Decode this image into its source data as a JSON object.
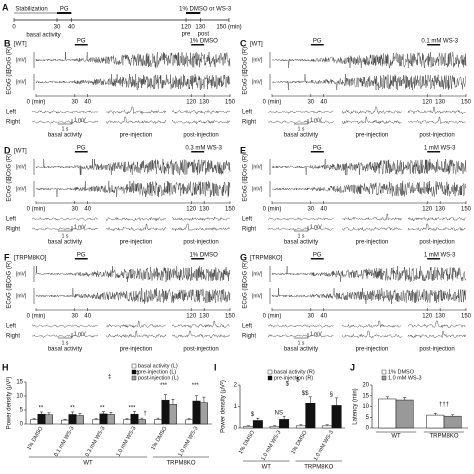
{
  "panel_a": {
    "letter": "A",
    "stabilization": "Stabilization",
    "pg": "PG",
    "treatment": "1% DMSO or WS-3",
    "xlim": [
      0,
      150
    ],
    "xticks": [
      0,
      30,
      40,
      120,
      130,
      {
        "value": 150,
        "label": "150 (min)"
      }
    ],
    "basal": "basal activity",
    "pre": "pre",
    "post": "post"
  },
  "trace_panels": [
    {
      "letter": "B",
      "genotype": "[WT]",
      "pg": "PG",
      "treatment": "1% DMSO",
      "ylabels": [
        "ECoG (R)",
        "ECoG (L)"
      ],
      "units": [
        "[mV]",
        "[mV]"
      ],
      "xlim": [
        0,
        150
      ],
      "xticks": [
        {
          "value": 0,
          "label": "0 (min)"
        },
        30,
        40,
        120,
        130,
        150
      ],
      "rows": [
        "Left",
        "Right"
      ],
      "epochs": [
        "basal activity",
        "pre-injection",
        "post-injection"
      ],
      "scale": [
        "1 s",
        "1 mV"
      ]
    },
    {
      "letter": "C",
      "genotype": "[WT]",
      "pg": "PG",
      "treatment": "0.1 mM WS-3",
      "ylabels": [
        "ECoG (R)",
        "ECoG (L)"
      ],
      "units": [
        "[mV]",
        "[mV]"
      ],
      "xlim": [
        0,
        150
      ],
      "xticks": [
        {
          "value": 0,
          "label": "0 (min)"
        },
        30,
        40,
        120,
        130,
        150
      ],
      "rows": [
        "Left",
        "Right"
      ],
      "epochs": [
        "basal activity",
        "pre-injection",
        "post-injection"
      ],
      "scale": [
        "1 s",
        "1 mV"
      ]
    },
    {
      "letter": "D",
      "genotype": "[WT]",
      "pg": "PG",
      "treatment": "0.3 mM WS-3",
      "ylabels": [
        "ECoG (R)",
        "ECoG (L)"
      ],
      "units": [
        "[mV]",
        "[mV]"
      ],
      "xlim": [
        0,
        150
      ],
      "xticks": [
        {
          "value": 0,
          "label": "0 (min)"
        },
        30,
        40,
        120,
        130,
        150
      ],
      "rows": [
        "Left",
        "Right"
      ],
      "epochs": [
        "basal activity",
        "pre-injection",
        "post-injection"
      ],
      "scale": [
        "1 s",
        "1 mV"
      ]
    },
    {
      "letter": "E",
      "pg": "PG",
      "treatment": "1 mM WS-3",
      "ylabels": [
        "ECoG (R)",
        "ECoG (L)"
      ],
      "units": [
        "[mV]",
        "[mV]"
      ],
      "xlim": [
        0,
        150
      ],
      "xticks": [
        {
          "value": 0,
          "label": "0 (min)"
        },
        30,
        40,
        120,
        130,
        150
      ],
      "rows": [
        "Left",
        "Right"
      ],
      "epochs": [
        "basal activity",
        "pre-injection",
        "post-injection"
      ],
      "scale": [
        "1 s",
        "1 mV"
      ]
    },
    {
      "letter": "F",
      "genotype": "[TRPM8KO]",
      "pg": "PG",
      "treatment": "1% DMSO",
      "ylabels": [
        "ECoG (R)",
        "ECoG (L)"
      ],
      "units": [
        "[mV]",
        "[mV]"
      ],
      "xlim": [
        0,
        150
      ],
      "xticks": [
        {
          "value": 0,
          "label": "0 (min)"
        },
        30,
        40,
        120,
        130,
        150
      ],
      "rows": [
        "Left",
        "Right"
      ],
      "epochs": [
        "basal activity",
        "pre-injection",
        "post-injection"
      ],
      "scale": [
        "1 s",
        "1 mV"
      ]
    },
    {
      "letter": "G",
      "genotype": "[TRPM8KO]",
      "pg": "PG",
      "treatment": "1 mM WS-3",
      "ylabels": [
        "ECoG (R)",
        "ECoG (L)"
      ],
      "units": [
        "[mV]",
        "[mV]"
      ],
      "xlim": [
        0,
        150
      ],
      "xticks": [
        {
          "value": 0,
          "label": "0 (min)"
        },
        30,
        40,
        120,
        130,
        150
      ],
      "rows": [
        "Left",
        "Right"
      ],
      "epochs": [
        "basal activity",
        "pre-injection",
        "post-injection"
      ],
      "scale": [
        "1 s",
        "1 mV"
      ]
    }
  ],
  "chart_data": [
    {
      "type": "bar",
      "letter": "H",
      "ylabel": "Power density (μV²)",
      "ylim": [
        0,
        15
      ],
      "yticks": [
        0,
        5,
        10,
        15
      ],
      "groups": [
        {
          "label": "WT",
          "categories": [
            "1% DMSO",
            "0.1 mM WS-3",
            "0.3 mM WS-3",
            "1.0 mM WS-3"
          ]
        },
        {
          "label": "TRPM8KO",
          "categories": [
            "1% DMSO",
            "1.0 mM WS-3"
          ]
        }
      ],
      "series": [
        {
          "name": "basal activity (L)",
          "color": "#ffffff",
          "values": [
            1.5,
            1.4,
            1.5,
            1.5,
            1.6,
            1.5
          ],
          "errors": [
            0.4,
            0.3,
            0.4,
            0.4,
            0.5,
            0.4
          ]
        },
        {
          "name": "pre-injection (L)",
          "color": "#111111",
          "values": [
            3.5,
            3.4,
            3.6,
            3.5,
            8.5,
            8.2
          ],
          "errors": [
            0.8,
            0.9,
            0.8,
            0.9,
            2.0,
            1.9
          ]
        },
        {
          "name": "post-injection (L)",
          "color": "#a0a0a0",
          "values": [
            3.3,
            3.0,
            3.4,
            1.6,
            7.0,
            7.6
          ],
          "errors": [
            0.7,
            0.8,
            0.8,
            0.5,
            1.8,
            2.0
          ]
        }
      ],
      "annotations": [
        "**",
        "**",
        "**",
        "***",
        "†",
        "***",
        "***",
        "‡",
        "‡"
      ]
    },
    {
      "type": "bar",
      "letter": "I",
      "ylabel": "Power density (μV²)",
      "ylim": [
        0,
        2
      ],
      "yticks": [
        0,
        1,
        2
      ],
      "groups": [
        {
          "label": "WT",
          "categories": [
            "1% DMSO",
            "1.0 mM WS-3"
          ]
        },
        {
          "label": "TRPM8KO",
          "categories": [
            "1% DMSO",
            "1.0 mM WS-3"
          ]
        }
      ],
      "series": [
        {
          "name": "basal activity (R)",
          "color": "#ffffff",
          "values": [
            0.08,
            0.08,
            0.1,
            0.1
          ],
          "errors": [
            0.03,
            0.03,
            0.05,
            0.05
          ]
        },
        {
          "name": "pre-injection (R)",
          "color": "#111111",
          "values": [
            0.35,
            0.4,
            1.15,
            1.05
          ],
          "errors": [
            0.1,
            0.15,
            0.3,
            0.35
          ]
        }
      ],
      "annotations": [
        "$",
        "NS",
        "$$",
        "§",
        "$",
        "$"
      ]
    },
    {
      "type": "bar",
      "letter": "J",
      "ylabel": "Latency (min)",
      "ylim": [
        0,
        20
      ],
      "yticks": [
        0,
        5,
        10,
        15,
        20
      ],
      "categories": [
        "WT",
        "TRPM8KO"
      ],
      "series": [
        {
          "name": "1% DMSO",
          "color": "#ffffff",
          "values": [
            13.5,
            6
          ],
          "errors": [
            1.0,
            0.8
          ]
        },
        {
          "name": "1.0 mM WS-3",
          "color": "#999999",
          "values": [
            13,
            5.5
          ],
          "errors": [
            1.2,
            0.7
          ]
        }
      ],
      "annotations": [
        "†††"
      ]
    }
  ]
}
